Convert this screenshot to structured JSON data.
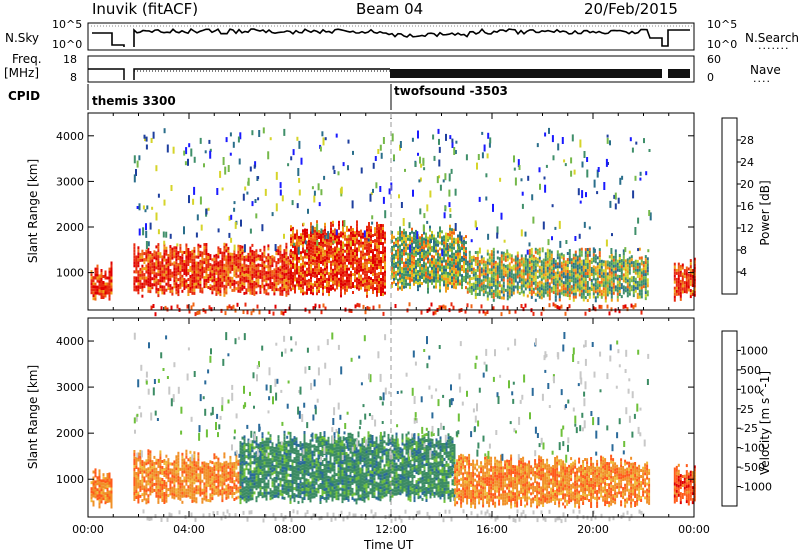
{
  "header": {
    "station": "Inuvik (fitACF)",
    "beam": "Beam 04",
    "date": "20/Feb/2015"
  },
  "top_panels": {
    "nsky_label": "N.Sky",
    "nsky_ticks": [
      "10^5",
      "10^0"
    ],
    "nsearch_label": "N.Search",
    "nsearch_ticks": [
      "10^5",
      "10^0"
    ],
    "freq_label": "Freq.",
    "freq_unit": "[MHz]",
    "freq_ticks": [
      "18",
      "8"
    ],
    "nave_label": "Nave",
    "nave_ticks": [
      "60",
      "0"
    ],
    "cpid_label": "CPID",
    "cpid_entries": [
      {
        "name": "themis 3300",
        "start_hour": 0.0
      },
      {
        "name": "twofsound -3503",
        "start_hour": 12.0
      }
    ]
  },
  "colors": {
    "power_scale": [
      "#1a1aff",
      "#1e3f9e",
      "#2a6e8a",
      "#3f8f6a",
      "#74b84a",
      "#d6d42a",
      "#f0a018",
      "#f06414",
      "#e82a10",
      "#e00000"
    ],
    "velocity_scale": [
      "#e00000",
      "#ff5a1a",
      "#f09028",
      "#f0b838",
      "#c8c8c8",
      "#6ec03a",
      "#3c8c64",
      "#2a6a9a",
      "#1e3ca8"
    ],
    "data_power_high": "#e02010",
    "data_velocity_main": "#3e8c64"
  },
  "chart_data": [
    {
      "type": "heatmap",
      "title": "Power",
      "xlabel": "",
      "ylabel": "Slant Range [km]",
      "xlim": [
        0,
        24
      ],
      "ylim": [
        180,
        4500
      ],
      "x_ticks": [
        "00:00",
        "04:00",
        "08:00",
        "12:00",
        "16:00",
        "20:00",
        "00:00"
      ],
      "y_ticks": [
        1000,
        2000,
        3000,
        4000
      ],
      "colorbar": {
        "label": "Power [dB]",
        "ticks": [
          "4",
          "8",
          "12",
          "16",
          "20",
          "24",
          "28"
        ]
      },
      "echo_bands": [
        {
          "from_hour": 0.1,
          "to_hour": 0.9,
          "range_km": [
            500,
            1100
          ],
          "level": "high"
        },
        {
          "from_hour": 1.8,
          "to_hour": 8.0,
          "range_km": [
            600,
            1500
          ],
          "level": "high"
        },
        {
          "from_hour": 8.0,
          "to_hour": 11.8,
          "range_km": [
            600,
            2000
          ],
          "level": "high"
        },
        {
          "from_hour": 12.0,
          "to_hour": 15.0,
          "range_km": [
            700,
            1900
          ],
          "level": "medium"
        },
        {
          "from_hour": 15.0,
          "to_hour": 22.2,
          "range_km": [
            500,
            1400
          ],
          "level": "medium"
        },
        {
          "from_hour": 23.2,
          "to_hour": 24.0,
          "range_km": [
            500,
            1200
          ],
          "level": "high"
        }
      ]
    },
    {
      "type": "heatmap",
      "title": "Velocity",
      "xlabel": "Time UT",
      "ylabel": "Slant Range [km]",
      "xlim": [
        0,
        24
      ],
      "ylim": [
        180,
        4500
      ],
      "x_ticks": [
        "00:00",
        "04:00",
        "08:00",
        "12:00",
        "16:00",
        "20:00",
        "00:00"
      ],
      "y_ticks": [
        1000,
        2000,
        3000,
        4000
      ],
      "colorbar": {
        "label": "Velocity [m s^-1]",
        "ticks": [
          "1000",
          "500",
          "100",
          "25",
          "-25",
          "-100",
          "-500",
          "-1000"
        ]
      },
      "echo_bands": [
        {
          "from_hour": 0.1,
          "to_hour": 0.9,
          "range_km": [
            500,
            1100
          ],
          "level": "-100"
        },
        {
          "from_hour": 1.8,
          "to_hour": 6.0,
          "range_km": [
            600,
            1500
          ],
          "level": "-100"
        },
        {
          "from_hour": 6.0,
          "to_hour": 14.5,
          "range_km": [
            600,
            1900
          ],
          "level": "100"
        },
        {
          "from_hour": 14.5,
          "to_hour": 22.2,
          "range_km": [
            500,
            1400
          ],
          "level": "-100"
        },
        {
          "from_hour": 23.2,
          "to_hour": 24.0,
          "range_km": [
            500,
            1200
          ],
          "level": "-500"
        }
      ]
    }
  ]
}
